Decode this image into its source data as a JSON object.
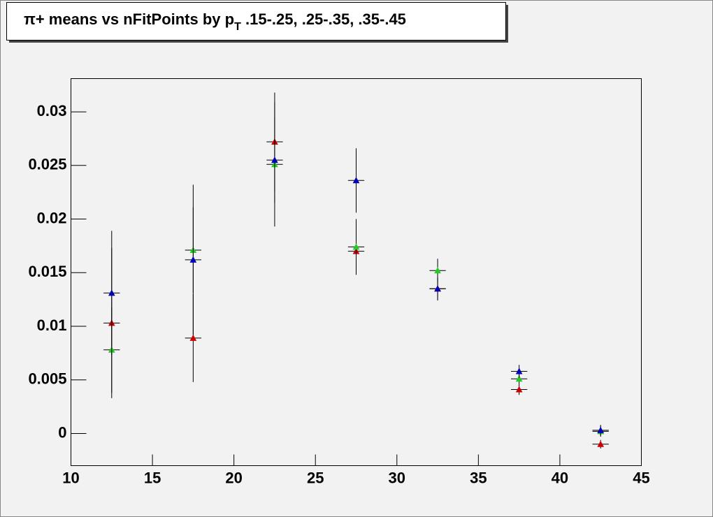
{
  "chart_data": {
    "type": "scatter",
    "title": {
      "main": "π+ means vs nFitPoints by p",
      "subscript": "T",
      "rest": " .15-.25, .25-.35, .35-.45"
    },
    "x": [
      12.5,
      17.5,
      22.5,
      27.5,
      32.5,
      37.5,
      42.5
    ],
    "series": [
      {
        "color": "#cc0000",
        "values": [
          0.0103,
          0.0089,
          0.0272,
          0.017,
          0.0135,
          0.0041,
          -0.001
        ],
        "errors": [
          0.007,
          0.0041,
          0.0046,
          0.002,
          0.001,
          0.0005,
          0.0004
        ]
      },
      {
        "color": "#22cc22",
        "values": [
          0.0078,
          0.0171,
          0.0251,
          0.0174,
          0.0152,
          0.0051,
          0.0002
        ],
        "errors": [
          0.004,
          0.004,
          0.0058,
          0.0026,
          0.0011,
          0.0005,
          0.0005
        ]
      },
      {
        "color": "#0000bb",
        "values": [
          0.0131,
          0.0162,
          0.0255,
          0.0236,
          0.0135,
          0.0058,
          0.0003
        ],
        "errors": [
          0.0058,
          0.007,
          0.004,
          0.003,
          0.0011,
          0.0006,
          0.0005
        ]
      }
    ],
    "xlim": [
      10,
      45
    ],
    "ylim": [
      -0.003,
      0.0331
    ],
    "xticks": [
      10,
      15,
      20,
      25,
      30,
      35,
      40,
      45
    ],
    "yticks": [
      0,
      0.005,
      0.01,
      0.015,
      0.02,
      0.025,
      0.03
    ]
  }
}
